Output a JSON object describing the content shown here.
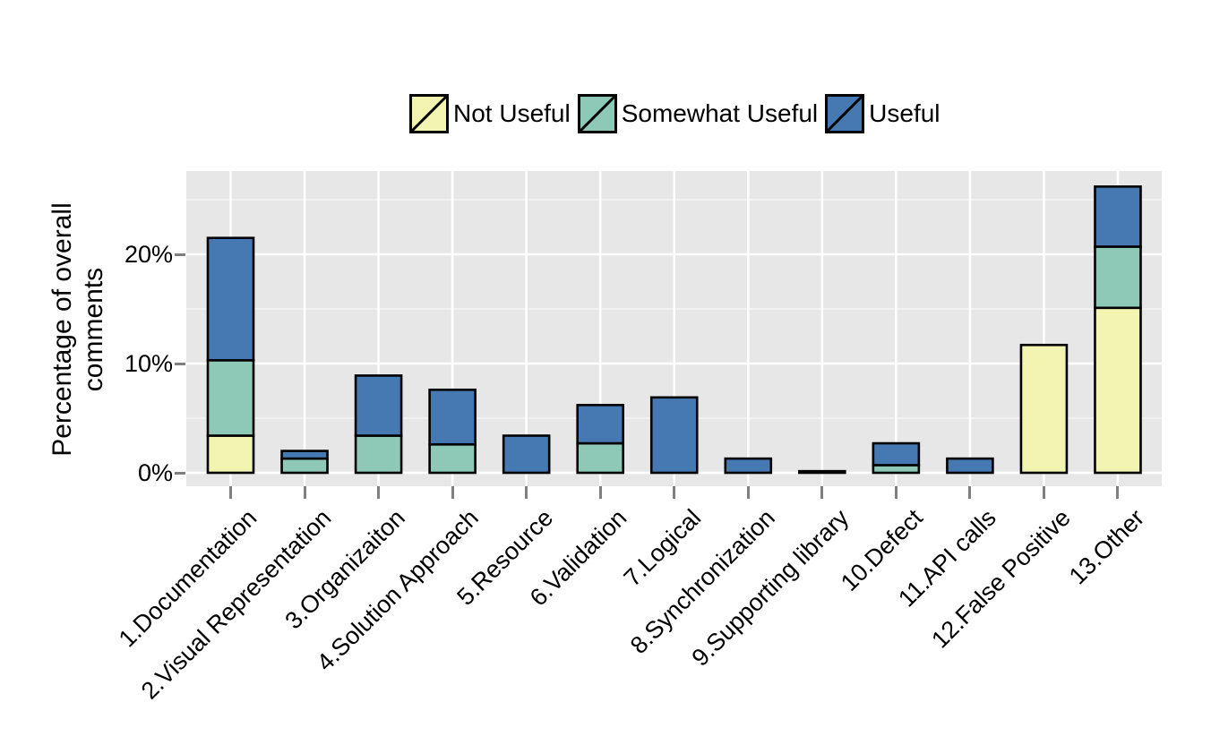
{
  "figure": {
    "y_axis_title_lines": [
      "Percentage of overall",
      "comments"
    ],
    "y_tick_labels": [
      "0%",
      "10%",
      "20%"
    ]
  },
  "legend": {
    "position": "top",
    "items": [
      {
        "label": "Not Useful",
        "color": "#F1F5B1"
      },
      {
        "label": "Somewhat Useful",
        "color": "#8DC9B6"
      },
      {
        "label": "Useful",
        "color": "#4679B2"
      }
    ]
  },
  "colors": {
    "panel_background": "#E7E7E7",
    "gridline_major": "#FFFFFF",
    "gridline_minor": "#FFFFFF",
    "bar_outline": "#000000",
    "tick_mark": "#7F7F7F",
    "text": "#000000"
  },
  "chart_data": {
    "type": "bar",
    "stacked": true,
    "title": "",
    "xlabel": "",
    "ylabel": "Percentage of overall comments",
    "ylim": [
      0,
      27.6
    ],
    "ytick_values": [
      0,
      10,
      20
    ],
    "minor_gridline_values": [
      5,
      15,
      25
    ],
    "grid": "white major+minor horizontal gridlines and vertical gridlines at category centers on gray panel",
    "legend_position": "top",
    "categories": [
      "1.Documentation",
      "2.Visual Representation",
      "3.Organizaiton",
      "4.Solution Approach",
      "5.Resource",
      "6.Validation",
      "7.Logical",
      "8.Synchronization",
      "9.Supporting library",
      "10.Defect",
      "11.API calls",
      "12.False Positive",
      "13.Other"
    ],
    "series": [
      {
        "name": "Not Useful",
        "color": "#F1F5B1",
        "values": [
          3.4,
          0,
          0,
          0,
          0,
          0,
          0,
          0,
          0,
          0,
          0,
          11.7,
          15.1
        ]
      },
      {
        "name": "Somewhat Useful",
        "color": "#8DC9B6",
        "values": [
          6.9,
          1.3,
          3.4,
          2.6,
          0,
          2.7,
          0,
          0,
          0,
          0.7,
          0,
          0,
          5.6
        ]
      },
      {
        "name": "Useful",
        "color": "#4679B2",
        "values": [
          11.2,
          0.7,
          5.5,
          5.0,
          3.4,
          3.5,
          6.9,
          1.3,
          0.15,
          2.0,
          1.3,
          0,
          5.5
        ]
      }
    ],
    "stacked_totals": [
      21.5,
      2.0,
      8.9,
      7.6,
      3.4,
      6.2,
      6.9,
      1.3,
      0.15,
      2.7,
      1.3,
      11.7,
      26.2
    ]
  }
}
